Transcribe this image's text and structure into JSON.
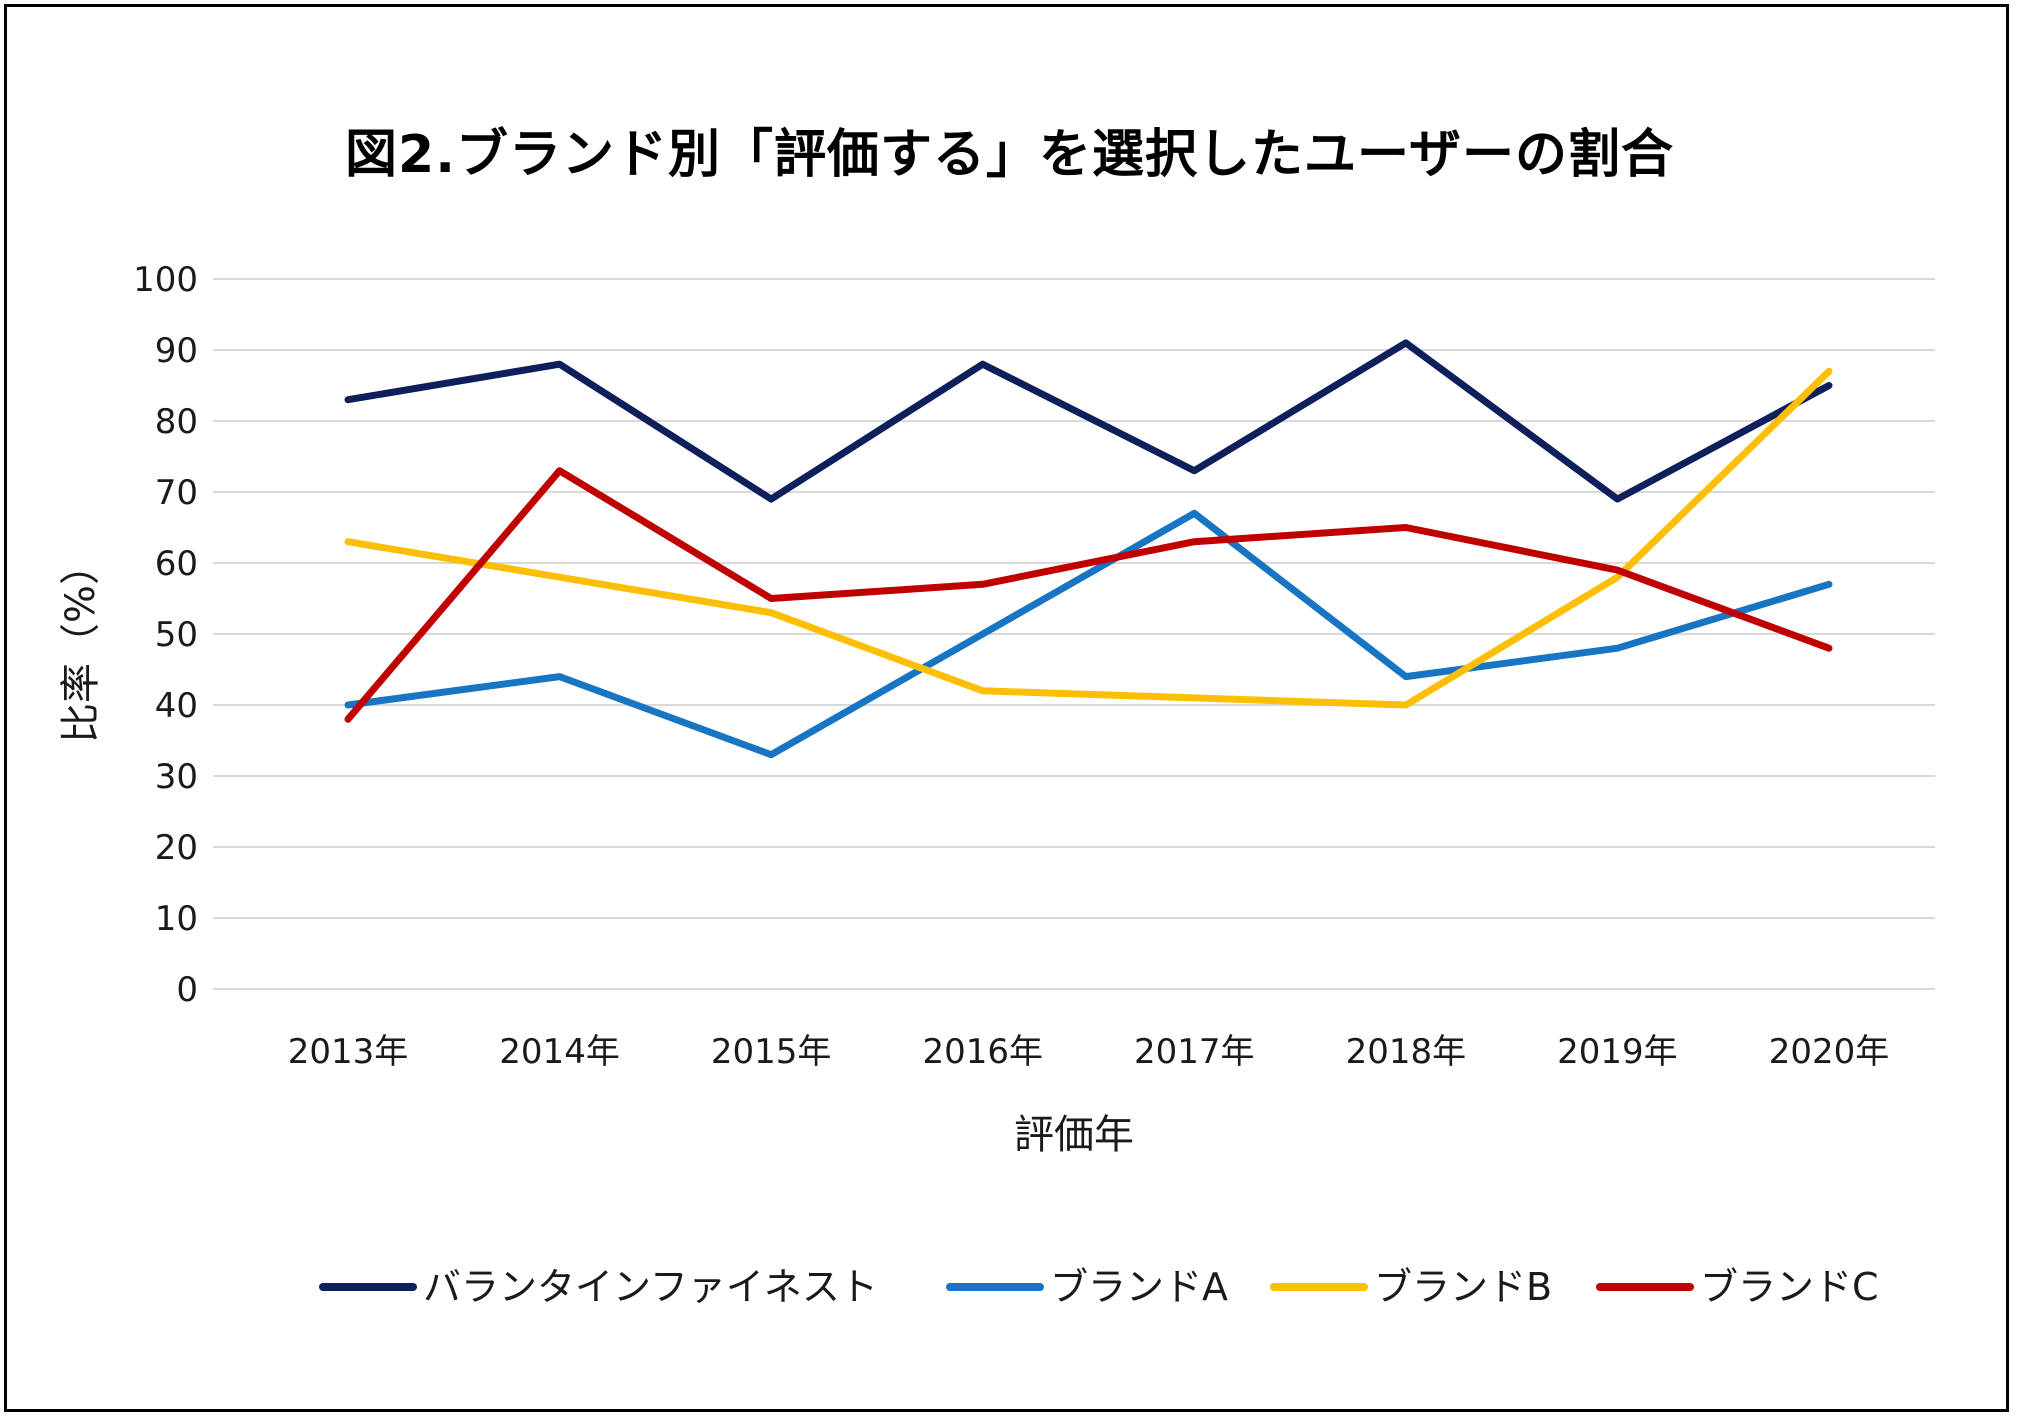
{
  "chart_data": {
    "type": "line",
    "title": "図2.ブランド別「評価する」を選択したユーザーの割合",
    "xlabel": "評価年",
    "ylabel": "比率（%）",
    "categories": [
      "2013年",
      "2014年",
      "2015年",
      "2016年",
      "2017年",
      "2018年",
      "2019年",
      "2020年"
    ],
    "ylim": [
      0,
      100
    ],
    "yticks": [
      0,
      10,
      20,
      30,
      40,
      50,
      60,
      70,
      80,
      90,
      100
    ],
    "grid": true,
    "legend_position": "bottom",
    "series": [
      {
        "name": "バランタインファイネスト",
        "color": "#0e1f5c",
        "values": [
          83,
          88,
          69,
          88,
          73,
          91,
          69,
          85
        ]
      },
      {
        "name": "ブランドA",
        "color": "#1775c4",
        "values": [
          40,
          44,
          33,
          50,
          67,
          44,
          48,
          57
        ]
      },
      {
        "name": "ブランドB",
        "color": "#fcbf06",
        "values": [
          63,
          58,
          53,
          42,
          41,
          40,
          58,
          87
        ]
      },
      {
        "name": "ブランドC",
        "color": "#c00000",
        "values": [
          38,
          73,
          55,
          57,
          63,
          65,
          59,
          48
        ]
      }
    ]
  }
}
